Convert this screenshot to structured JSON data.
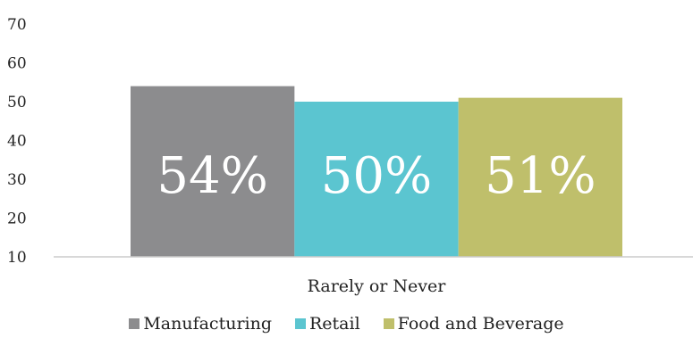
{
  "chart_data": {
    "type": "bar",
    "categories": [
      "Rarely or Never"
    ],
    "series": [
      {
        "name": "Manufacturing",
        "values": [
          54
        ],
        "label": "54%",
        "color": "#8c8c8e"
      },
      {
        "name": "Retail",
        "values": [
          50
        ],
        "label": "50%",
        "color": "#5bc5d0"
      },
      {
        "name": "Food and Beverage",
        "values": [
          51
        ],
        "label": "51%",
        "color": "#bfbf6b"
      }
    ],
    "ylim": [
      10,
      70
    ],
    "yticks": [
      "10",
      "20",
      "30",
      "40",
      "50",
      "60",
      "70"
    ],
    "grid": false,
    "legend_position": "bottom"
  }
}
